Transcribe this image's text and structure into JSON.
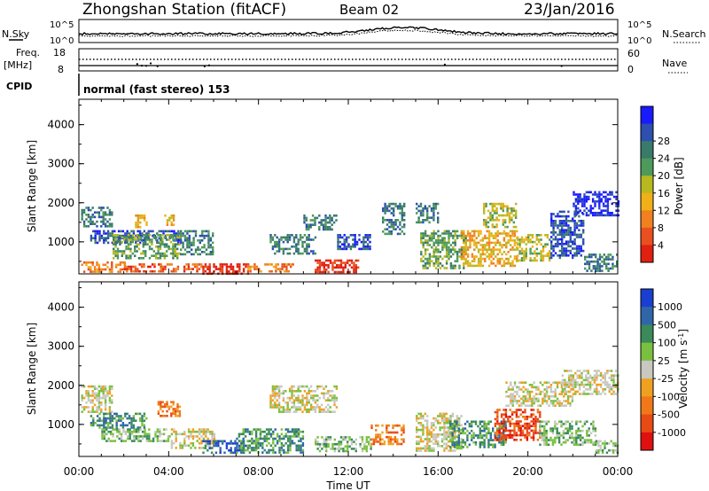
{
  "header": {
    "title": "Zhongshan Station (fitACF)",
    "beam": "Beam 02",
    "date": "23/Jan/2016"
  },
  "top_panels": {
    "nsky_label": "N.Sky",
    "nsky_top_tick": "10^5",
    "nsky_bottom_tick": "10^0",
    "nsearch_label": "N.Search",
    "freq_label": "Freq.",
    "freq_unit": "[MHz]",
    "freq_top_tick": "18",
    "freq_bottom_tick": "8",
    "nave_top_tick": "60",
    "nave_bottom_tick": "0",
    "nave_label": "Nave",
    "cpid_label": "CPID",
    "cpid_text": "normal (fast stereo) 153"
  },
  "chart_data": [
    {
      "type": "heatmap",
      "panel": "power",
      "ylabel": "Slant Range [km]",
      "yticks": [
        1000,
        2000,
        3000,
        4000
      ],
      "ylim": [
        180,
        4650
      ],
      "colorbar": {
        "label": "Power [dB]",
        "ticks": [
          "4",
          "8",
          "12",
          "16",
          "20",
          "24",
          "28"
        ],
        "colors": [
          "#1a1aff",
          "#2c4fb0",
          "#3a7a6a",
          "#4d9a5a",
          "#b8b820",
          "#f0b018",
          "#f08020",
          "#e85020",
          "#e02010"
        ]
      },
      "echo_regions": [
        {
          "x0": 0.1,
          "x1": 2.0,
          "y0": 250,
          "y1": 500,
          "level": 6
        },
        {
          "x0": 2.0,
          "x1": 5.5,
          "y0": 250,
          "y1": 450,
          "level": 7
        },
        {
          "x0": 5.5,
          "x1": 7.5,
          "y0": 200,
          "y1": 450,
          "level": 8
        },
        {
          "x0": 7.5,
          "x1": 9.5,
          "y0": 250,
          "y1": 450,
          "level": 6
        },
        {
          "x0": 10.5,
          "x1": 12.5,
          "y0": 250,
          "y1": 550,
          "level": 8
        },
        {
          "x0": 0.1,
          "x1": 1.5,
          "y0": 1400,
          "y1": 1900,
          "level": 2
        },
        {
          "x0": 0.5,
          "x1": 4.5,
          "y0": 1000,
          "y1": 1300,
          "level": 1
        },
        {
          "x0": 1.5,
          "x1": 4.5,
          "y0": 600,
          "y1": 1200,
          "level": 3
        },
        {
          "x0": 2.5,
          "x1": 3.0,
          "y0": 1400,
          "y1": 1700,
          "level": 5
        },
        {
          "x0": 3.8,
          "x1": 4.2,
          "y0": 1400,
          "y1": 1700,
          "level": 5
        },
        {
          "x0": 4.5,
          "x1": 6.0,
          "y0": 700,
          "y1": 1300,
          "level": 2
        },
        {
          "x0": 8.5,
          "x1": 10.5,
          "y0": 700,
          "y1": 1200,
          "level": 2
        },
        {
          "x0": 10.0,
          "x1": 11.5,
          "y0": 1300,
          "y1": 1700,
          "level": 2
        },
        {
          "x0": 11.5,
          "x1": 13.0,
          "y0": 800,
          "y1": 1200,
          "level": 1
        },
        {
          "x0": 13.5,
          "x1": 14.5,
          "y0": 1200,
          "y1": 2000,
          "level": 2
        },
        {
          "x0": 15.0,
          "x1": 16.0,
          "y0": 1500,
          "y1": 2000,
          "level": 2
        },
        {
          "x0": 15.2,
          "x1": 17.2,
          "y0": 300,
          "y1": 1300,
          "level": 3
        },
        {
          "x0": 17.0,
          "x1": 19.5,
          "y0": 400,
          "y1": 1300,
          "level": 5
        },
        {
          "x0": 18.0,
          "x1": 19.5,
          "y0": 1400,
          "y1": 2000,
          "level": 4
        },
        {
          "x0": 19.5,
          "x1": 21.0,
          "y0": 500,
          "y1": 1200,
          "level": 4
        },
        {
          "x0": 21.0,
          "x1": 22.5,
          "y0": 600,
          "y1": 1800,
          "level": 1
        },
        {
          "x0": 22.0,
          "x1": 24.0,
          "y0": 1700,
          "y1": 2300,
          "level": 0
        },
        {
          "x0": 22.5,
          "x1": 24.0,
          "y0": 250,
          "y1": 700,
          "level": 2
        }
      ]
    },
    {
      "type": "heatmap",
      "panel": "velocity",
      "xlabel": "Time UT",
      "xticks": [
        "00:00",
        "04:00",
        "08:00",
        "12:00",
        "16:00",
        "20:00",
        "00:00"
      ],
      "xlim": [
        0,
        24
      ],
      "ylabel": "Slant Range [km]",
      "yticks": [
        1000,
        2000,
        3000,
        4000
      ],
      "ylim": [
        180,
        4650
      ],
      "colorbar": {
        "label": "Velocity [m s",
        "label_sup": "-1",
        "label_end": "]",
        "ticks": [
          "1000",
          "500",
          "100",
          "25",
          "-25",
          "-100",
          "-500",
          "-1000"
        ],
        "colors": [
          "#1a3fd0",
          "#2f66a8",
          "#3a8a5a",
          "#7ac040",
          "#c8c8c0",
          "#f0a020",
          "#f07818",
          "#e84a14",
          "#e01010"
        ]
      },
      "echo_regions": [
        {
          "x0": 0.1,
          "x1": 1.5,
          "y0": 1300,
          "y1": 2000,
          "level": 4
        },
        {
          "x0": 0.5,
          "x1": 3.0,
          "y0": 900,
          "y1": 1300,
          "level": 2
        },
        {
          "x0": 1.0,
          "x1": 4.0,
          "y0": 600,
          "y1": 900,
          "level": 3
        },
        {
          "x0": 3.5,
          "x1": 4.5,
          "y0": 1200,
          "y1": 1600,
          "level": 6
        },
        {
          "x0": 4.0,
          "x1": 6.0,
          "y0": 400,
          "y1": 900,
          "level": 4
        },
        {
          "x0": 5.5,
          "x1": 7.5,
          "y0": 250,
          "y1": 600,
          "level": 1
        },
        {
          "x0": 7.0,
          "x1": 10.0,
          "y0": 300,
          "y1": 900,
          "level": 2
        },
        {
          "x0": 8.5,
          "x1": 11.5,
          "y0": 1300,
          "y1": 2000,
          "level": 4
        },
        {
          "x0": 10.5,
          "x1": 13.0,
          "y0": 300,
          "y1": 700,
          "level": 3
        },
        {
          "x0": 13.0,
          "x1": 14.5,
          "y0": 500,
          "y1": 1000,
          "level": 6
        },
        {
          "x0": 15.0,
          "x1": 17.0,
          "y0": 300,
          "y1": 1300,
          "level": 4
        },
        {
          "x0": 16.5,
          "x1": 19.0,
          "y0": 400,
          "y1": 1100,
          "level": 2
        },
        {
          "x0": 18.5,
          "x1": 20.5,
          "y0": 600,
          "y1": 1400,
          "level": 7
        },
        {
          "x0": 19.0,
          "x1": 22.0,
          "y0": 1500,
          "y1": 2100,
          "level": 4
        },
        {
          "x0": 21.5,
          "x1": 24.0,
          "y0": 1800,
          "y1": 2400,
          "level": 4
        },
        {
          "x0": 20.5,
          "x1": 23.0,
          "y0": 500,
          "y1": 1100,
          "level": 3
        },
        {
          "x0": 23.0,
          "x1": 24.0,
          "y0": 250,
          "y1": 600,
          "level": 3
        }
      ]
    }
  ]
}
